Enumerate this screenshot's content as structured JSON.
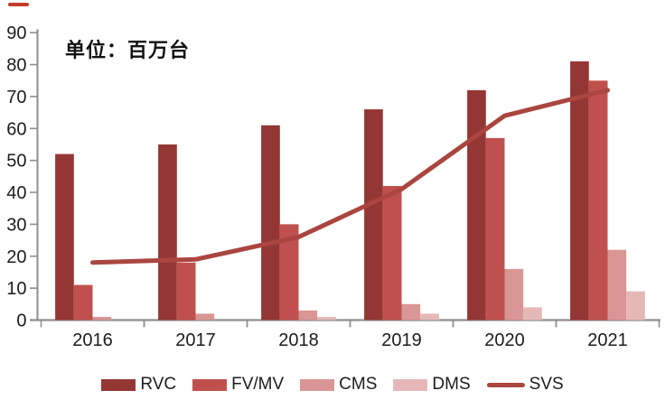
{
  "unit_label": "单位：百万台",
  "colors": {
    "axis": "#8f8f8f",
    "text": "#1c1c1c",
    "background": "#ffffff",
    "artifact_red": "#c13a2c"
  },
  "chart_data": {
    "type": "bar",
    "title": "单位：百万台",
    "categories": [
      "2016",
      "2017",
      "2018",
      "2019",
      "2020",
      "2021"
    ],
    "series": [
      {
        "name": "RVC",
        "kind": "bar",
        "color": "#943634",
        "values": [
          52,
          55,
          61,
          66,
          72,
          81
        ]
      },
      {
        "name": "FV/MV",
        "kind": "bar",
        "color": "#C0504D",
        "values": [
          11,
          18,
          30,
          42,
          57,
          75
        ]
      },
      {
        "name": "CMS",
        "kind": "bar",
        "color": "#D99694",
        "values": [
          1,
          2,
          3,
          5,
          16,
          22
        ]
      },
      {
        "name": "DMS",
        "kind": "bar",
        "color": "#E5B8B7",
        "values": [
          0,
          0,
          1,
          2,
          4,
          9
        ]
      },
      {
        "name": "SVS",
        "kind": "line",
        "color": "#AA453F",
        "values": [
          18,
          19,
          26,
          41,
          64,
          72
        ]
      }
    ],
    "ylim": [
      0,
      90
    ],
    "y_ticks": [
      0,
      10,
      20,
      30,
      40,
      50,
      60,
      70,
      80,
      90
    ],
    "grid": false,
    "legend_position": "bottom"
  }
}
